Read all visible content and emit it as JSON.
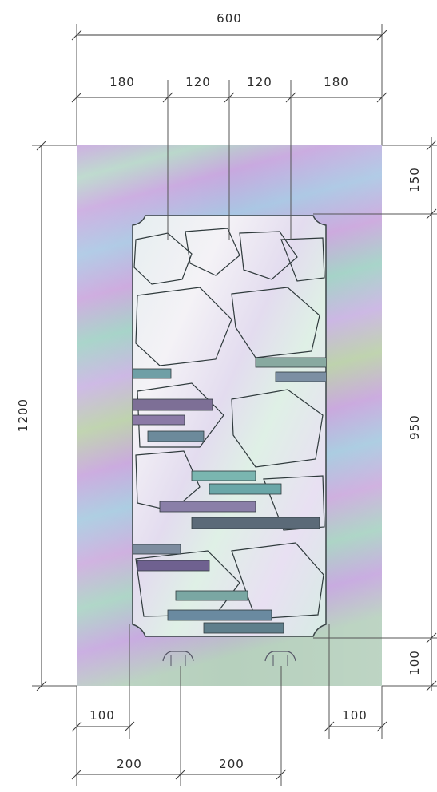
{
  "drawing": {
    "top_dimensions": {
      "overall_width": "600",
      "segments": [
        "180",
        "120",
        "120",
        "180"
      ]
    },
    "left_dimension": {
      "overall_height": "1200"
    },
    "right_dimensions": {
      "top_margin": "150",
      "panel_height": "950",
      "bottom_margin": "100"
    },
    "bottom_dimensions": {
      "side_margins": [
        "100",
        "100"
      ],
      "lamp_spacing": [
        "200",
        "200"
      ]
    },
    "colors": {
      "background_band_a": "#c7a6de",
      "background_band_b": "#9fcfc6",
      "background_band_c": "#b8c9a0",
      "panel_base": "#e9e6ef",
      "brick_dark": "#5b6a78",
      "brick_teal": "#6fa8a2",
      "dimension_ink": "#2a2a2a"
    }
  }
}
